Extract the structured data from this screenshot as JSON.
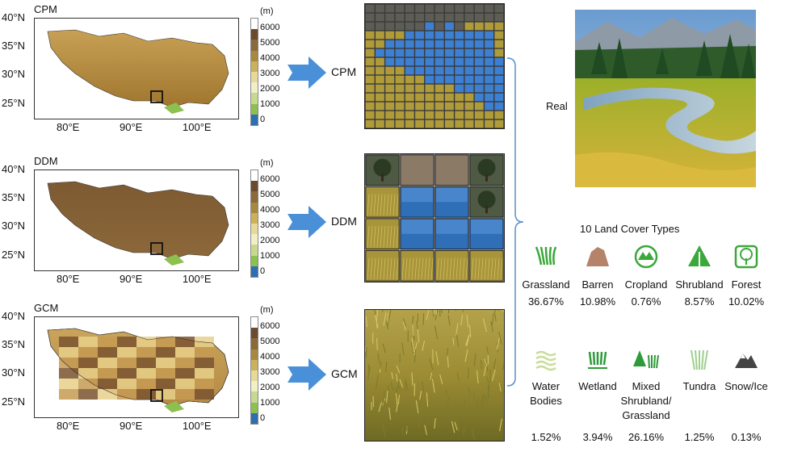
{
  "colorbar": {
    "unit": "(m)",
    "levels": [
      "6000",
      "5000",
      "4000",
      "3000",
      "2000",
      "1000",
      "0"
    ],
    "colors": [
      "#ffffff",
      "#6b4a2e",
      "#8a6a3a",
      "#a8883f",
      "#c9b25a",
      "#e6d99a",
      "#f1efc8",
      "#c6d98f",
      "#8cc04f",
      "#2d6fb0"
    ]
  },
  "maps": [
    {
      "title": "CPM",
      "lat_ticks": [
        "40°N",
        "35°N",
        "30°N",
        "25°N"
      ],
      "lon_ticks": [
        "80°E",
        "90°E",
        "100°E"
      ]
    },
    {
      "title": "DDM",
      "lat_ticks": [
        "40°N",
        "35°N",
        "30°N",
        "25°N"
      ],
      "lon_ticks": [
        "80°E",
        "90°E",
        "100°E"
      ]
    },
    {
      "title": "GCM",
      "lat_ticks": [
        "40°N",
        "35°N",
        "30°N",
        "25°N"
      ],
      "lon_ticks": [
        "80°E",
        "90°E",
        "100°E"
      ]
    }
  ],
  "arrows": [
    "CPM",
    "DDM",
    "GCM"
  ],
  "real_label": "Real",
  "land_cover_title": "10 Land Cover Types",
  "land_cover": [
    {
      "name": "Grassland",
      "pct": "36.67%",
      "icon": "grassland-icon",
      "color": "#3aa83a"
    },
    {
      "name": "Barren",
      "pct": "10.98%",
      "icon": "barren-icon",
      "color": "#b5836a"
    },
    {
      "name": "Cropland",
      "pct": "0.76%",
      "icon": "cropland-icon",
      "color": "#3aa83a"
    },
    {
      "name": "Shrubland",
      "pct": "8.57%",
      "icon": "shrubland-icon",
      "color": "#3aa83a"
    },
    {
      "name": "Forest",
      "pct": "10.02%",
      "icon": "forest-icon",
      "color": "#3aa83a"
    },
    {
      "name": "Water\nBodies",
      "pct": "1.52%",
      "icon": "water-icon",
      "color": "#c9dd9a"
    },
    {
      "name": "Wetland",
      "pct": "3.94%",
      "icon": "wetland-icon",
      "color": "#2e9a3a"
    },
    {
      "name": "Mixed\nShrubland/\nGrassland",
      "pct": "26.16%",
      "icon": "mixed-shrub-grass-icon",
      "color": "#2e9a3a"
    },
    {
      "name": "Tundra",
      "pct": "1.25%",
      "icon": "tundra-icon",
      "color": "#9ed08e"
    },
    {
      "name": "Snow/Ice",
      "pct": "0.13%",
      "icon": "snow-ice-icon",
      "color": "#444444"
    }
  ]
}
